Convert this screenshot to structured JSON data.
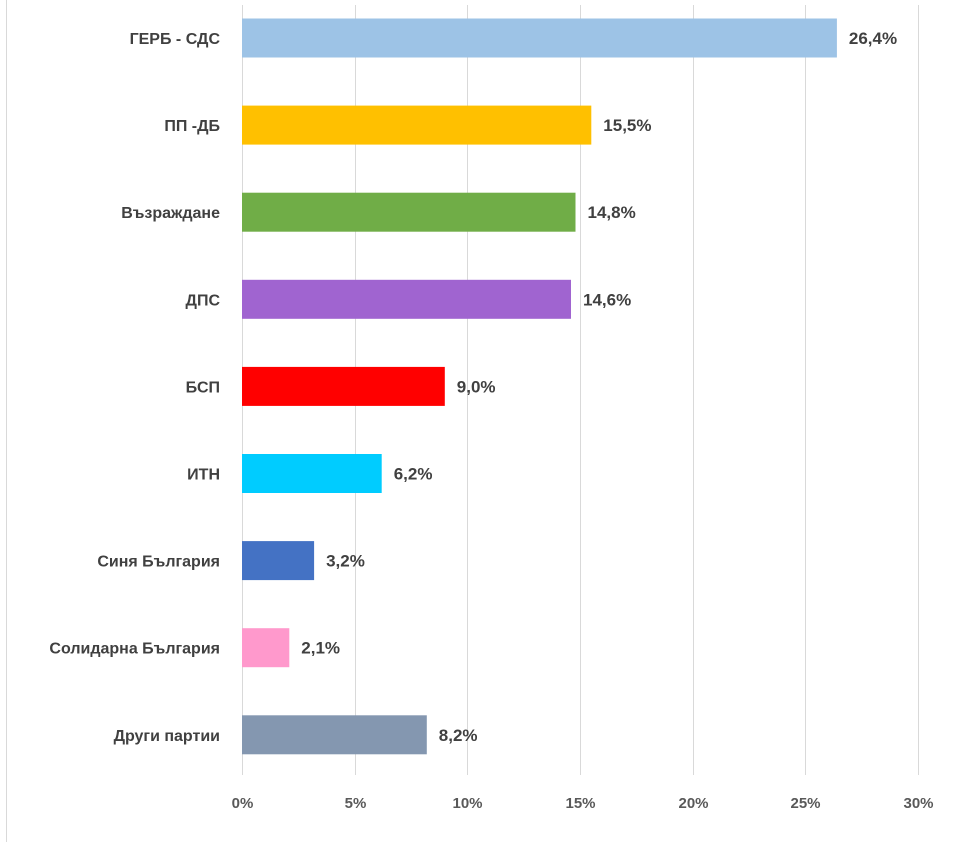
{
  "chart_data": {
    "type": "bar",
    "orientation": "horizontal",
    "title": "",
    "xlabel": "",
    "ylabel": "",
    "xlim": [
      0,
      30
    ],
    "x_ticks": [
      0,
      5,
      10,
      15,
      20,
      25,
      30
    ],
    "x_tick_labels": [
      "0%",
      "5%",
      "10%",
      "15%",
      "20%",
      "25%",
      "30%"
    ],
    "grid": "vertical",
    "legend": "none",
    "categories": [
      "ГЕРБ - СДС",
      "ПП -ДБ",
      "Възраждане",
      "ДПС",
      "БСП",
      "ИТН",
      "Синя България",
      "Солидарна България",
      "Други партии"
    ],
    "values": [
      26.4,
      15.5,
      14.8,
      14.6,
      9.0,
      6.2,
      3.2,
      2.1,
      8.2
    ],
    "data_labels": [
      "26,4%",
      "15,5%",
      "14,8%",
      "14,6%",
      "9,0%",
      "6,2%",
      "3,2%",
      "2,1%",
      "8,2%"
    ],
    "colors": [
      "#9DC3E6",
      "#FFC000",
      "#70AD47",
      "#A064D0",
      "#FF0000",
      "#00CCFF",
      "#4472C4",
      "#FF99CC",
      "#8497B0"
    ]
  }
}
